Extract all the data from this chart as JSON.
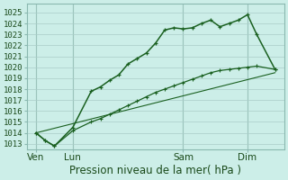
{
  "xlabel": "Pression niveau de la mer( hPa )",
  "ylim": [
    1012.5,
    1025.8
  ],
  "xlim": [
    0,
    28
  ],
  "background_color": "#cceee8",
  "grid_color": "#aaccc8",
  "line_color": "#1a6020",
  "xtick_labels": [
    "Ven",
    "Lun",
    "Sam",
    "Dim"
  ],
  "xtick_positions": [
    1,
    5,
    17,
    24
  ],
  "ytick_vals": [
    1013,
    1014,
    1015,
    1016,
    1017,
    1018,
    1019,
    1020,
    1021,
    1022,
    1023,
    1024,
    1025
  ],
  "line1_x": [
    1,
    2,
    3,
    5,
    7,
    8,
    9,
    10,
    11,
    12,
    13,
    14,
    15,
    16,
    17,
    18,
    19,
    20,
    21,
    22,
    23,
    24,
    25,
    27
  ],
  "line1_y": [
    1014.0,
    1013.3,
    1012.8,
    1014.5,
    1017.8,
    1018.2,
    1018.8,
    1019.3,
    1020.3,
    1020.8,
    1021.3,
    1022.2,
    1023.4,
    1023.6,
    1023.5,
    1023.6,
    1024.0,
    1024.3,
    1023.7,
    1024.0,
    1024.3,
    1024.8,
    1023.0,
    1019.8
  ],
  "line2_x": [
    1,
    2,
    3,
    5,
    7,
    8,
    9,
    10,
    11,
    12,
    13,
    14,
    15,
    16,
    17,
    18,
    19,
    20,
    21,
    22,
    23,
    24,
    25,
    27
  ],
  "line2_y": [
    1014.0,
    1013.3,
    1012.8,
    1014.2,
    1015.0,
    1015.3,
    1015.7,
    1016.1,
    1016.5,
    1016.9,
    1017.3,
    1017.7,
    1018.0,
    1018.3,
    1018.6,
    1018.9,
    1019.2,
    1019.5,
    1019.7,
    1019.8,
    1019.9,
    1020.0,
    1020.1,
    1019.8
  ],
  "line3_x": [
    1,
    27
  ],
  "line3_y": [
    1014.0,
    1019.5
  ],
  "vline_positions": [
    1,
    5,
    17,
    24
  ],
  "fontsize_xlabel": 8.5,
  "fontsize_yticks": 6.5,
  "fontsize_xticks": 7.5
}
